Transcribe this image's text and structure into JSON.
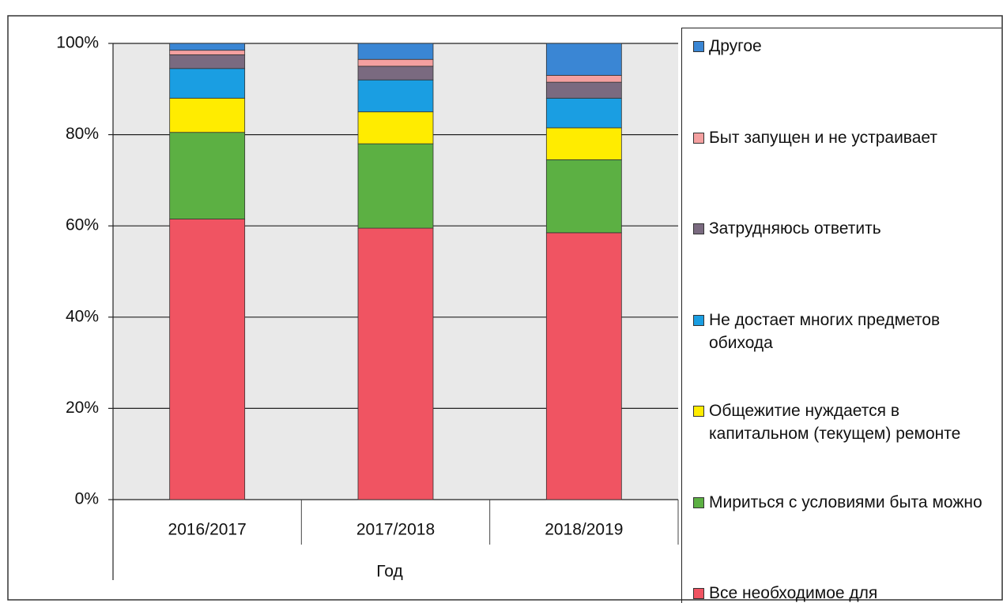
{
  "chart_data": {
    "type": "stacked_bar",
    "categories": [
      "2016/2017",
      "2017/2018",
      "2018/2019"
    ],
    "x_label": "Год",
    "series": [
      {
        "name": "Все необходимое для",
        "color": "#f05462",
        "values": [
          61.5,
          59.5,
          58.5
        ]
      },
      {
        "name": "Мириться с условиями быта можно",
        "color": "#5cb043",
        "values": [
          19,
          18.5,
          16
        ]
      },
      {
        "name": "Общежитие нуждается в капитальном (текущем) ремонте",
        "color": "#ffec00",
        "values": [
          7.5,
          7,
          7
        ]
      },
      {
        "name": "Не достает многих предметов обихода",
        "color": "#1a9ee2",
        "values": [
          6.5,
          7,
          6.5
        ]
      },
      {
        "name": "Затрудняюсь ответить",
        "color": "#7a6a80",
        "values": [
          3,
          3,
          3.5
        ]
      },
      {
        "name": "Быт запущен и не устраивает",
        "color": "#f4a0a0",
        "values": [
          1,
          1.5,
          1.5
        ]
      },
      {
        "name": "Другое",
        "color": "#3a86d4",
        "values": [
          1.5,
          3.5,
          7
        ]
      }
    ],
    "ylim": [
      0,
      100
    ],
    "yticks": [
      {
        "value": 0,
        "label": "0%"
      },
      {
        "value": 20,
        "label": "20%"
      },
      {
        "value": 40,
        "label": "40%"
      },
      {
        "value": 60,
        "label": "60%"
      },
      {
        "value": 80,
        "label": "80%"
      },
      {
        "value": 100,
        "label": "100%"
      }
    ],
    "grid": true
  }
}
